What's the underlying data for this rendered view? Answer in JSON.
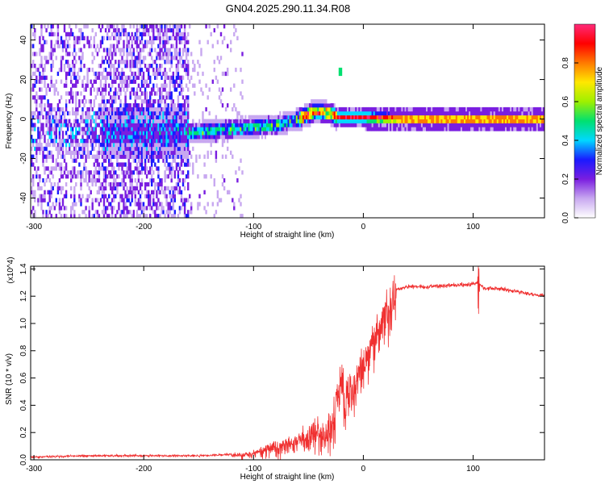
{
  "title": "GN04.2025.290.11.34.R08",
  "chart_data": [
    {
      "type": "heatmap",
      "xlabel": "Height of straight line (km)",
      "ylabel": "Frequency (Hz)",
      "xlim": [
        -303,
        165
      ],
      "ylim": [
        -50,
        48
      ],
      "xticks": [
        -300,
        -200,
        -100,
        0,
        100
      ],
      "yticks": [
        -40,
        -20,
        0,
        20,
        40
      ],
      "colorbar": {
        "label": "Normalized spectral amplitude",
        "range": [
          0,
          1
        ],
        "ticks": [
          "0.0",
          "0.2",
          "0.4",
          "0.6",
          "0.8"
        ],
        "colors": [
          "#ffffff",
          "#c8a8f0",
          "#7a1ee0",
          "#1a1aff",
          "#00d8ff",
          "#00e070",
          "#9ef000",
          "#ffe800",
          "#ff7a00",
          "#ff0000",
          "#ff2a7a"
        ]
      },
      "ridge": {
        "x": [
          -160,
          -120,
          -80,
          -60,
          -45,
          -30,
          -25,
          -20,
          0,
          40,
          80,
          120,
          165
        ],
        "freq": [
          -8,
          -6,
          -4,
          -1,
          3,
          2,
          0,
          0,
          0,
          -1,
          -1,
          -1,
          -1
        ]
      },
      "spur": {
        "x": -22,
        "freq": 23
      }
    },
    {
      "type": "line",
      "xlabel": "Height of straight line (km)",
      "ylabel": "SNR (10 * v/v)",
      "yscale_label": "(x10^4)",
      "xlim": [
        -303,
        165
      ],
      "ylim": [
        0,
        1.42
      ],
      "xticks": [
        -300,
        -200,
        -100,
        0,
        100
      ],
      "yticks": [
        "0.0",
        "0.2",
        "0.4",
        "0.6",
        "0.8",
        "1.0",
        "1.2",
        "1.4"
      ],
      "series": [
        {
          "color": "#f03030",
          "x": [
            -303,
            -250,
            -200,
            -150,
            -120,
            -100,
            -80,
            -60,
            -45,
            -35,
            -30,
            -25,
            -20,
            -15,
            -10,
            -5,
            0,
            10,
            20,
            30,
            40,
            60,
            80,
            100,
            105,
            110,
            130,
            150,
            165
          ],
          "y": [
            0.02,
            0.03,
            0.03,
            0.03,
            0.04,
            0.06,
            0.12,
            0.18,
            0.25,
            0.25,
            0.35,
            0.5,
            0.65,
            0.6,
            0.58,
            0.7,
            0.8,
            0.95,
            1.15,
            1.25,
            1.27,
            1.27,
            1.28,
            1.29,
            1.3,
            1.26,
            1.25,
            1.22,
            1.2
          ]
        }
      ]
    }
  ]
}
